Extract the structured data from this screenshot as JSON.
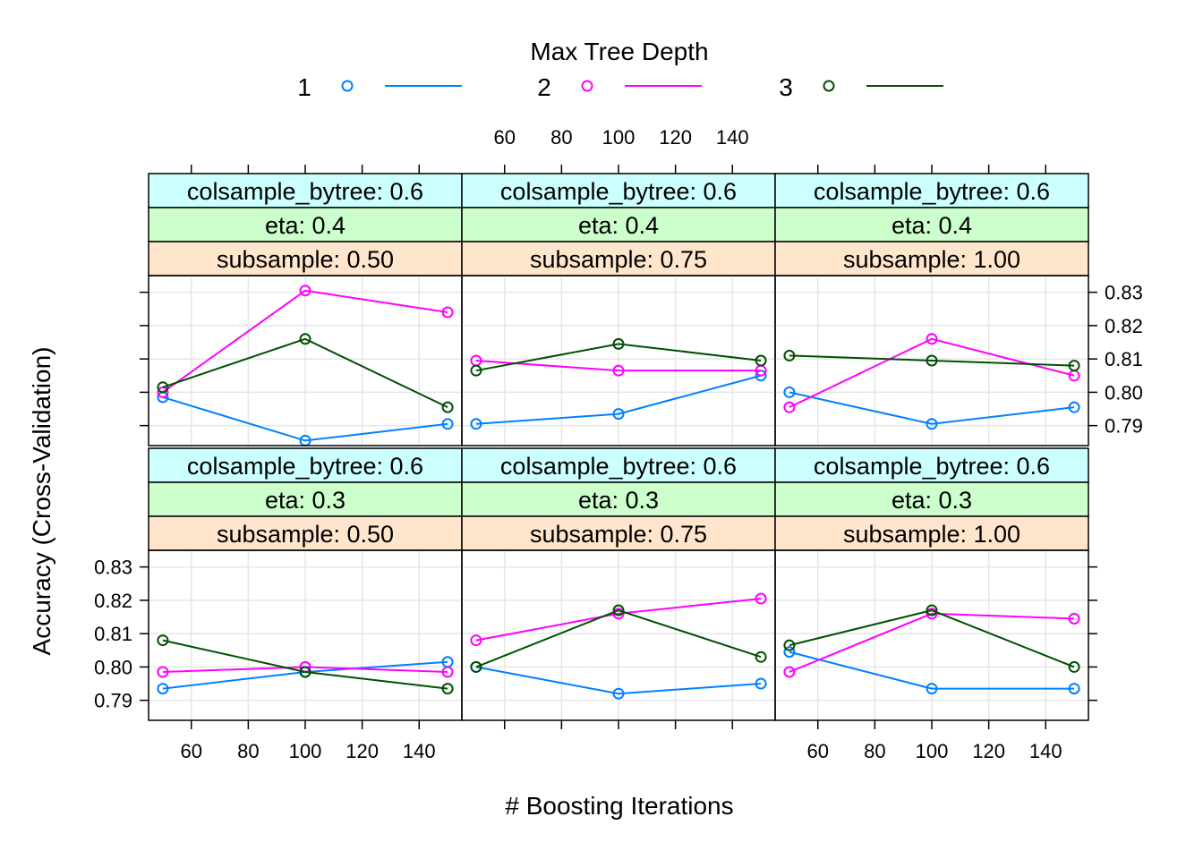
{
  "chart_data": {
    "type": "line",
    "legend": {
      "title": "Max Tree Depth",
      "placement": "top",
      "entries": [
        {
          "name": "1",
          "color": "#0080FF"
        },
        {
          "name": "2",
          "color": "#FF00FF"
        },
        {
          "name": "3",
          "color": "#005000"
        }
      ]
    },
    "xlabel": "# Boosting Iterations",
    "ylabel": "Accuracy (Cross-Validation)",
    "xlim": [
      45,
      155
    ],
    "ylim": [
      0.784,
      0.835
    ],
    "x_ticks": [
      60,
      80,
      100,
      120,
      140
    ],
    "x_tick_labels": [
      "60",
      "80",
      "100",
      "120",
      "140"
    ],
    "y_ticks": [
      0.79,
      0.8,
      0.81,
      0.82,
      0.83
    ],
    "y_tick_labels": [
      "0.79",
      "0.80",
      "0.81",
      "0.82",
      "0.83"
    ],
    "grid": true,
    "strip_colors": [
      "#CCFFFF",
      "#CCFFCC",
      "#FFE5CC"
    ],
    "x": [
      50,
      100,
      150
    ],
    "panels": [
      {
        "row": 0,
        "col": 0,
        "strips": [
          "colsample_bytree: 0.6",
          "eta: 0.4",
          "subsample: 0.50"
        ],
        "series": [
          {
            "name": "1",
            "values": [
              0.7985,
              0.7855,
              0.7905
            ]
          },
          {
            "name": "2",
            "values": [
              0.8,
              0.8305,
              0.824
            ]
          },
          {
            "name": "3",
            "values": [
              0.8015,
              0.816,
              0.7955
            ]
          }
        ]
      },
      {
        "row": 0,
        "col": 1,
        "strips": [
          "colsample_bytree: 0.6",
          "eta: 0.4",
          "subsample: 0.75"
        ],
        "series": [
          {
            "name": "1",
            "values": [
              0.7905,
              0.7935,
              0.805
            ]
          },
          {
            "name": "2",
            "values": [
              0.8095,
              0.8065,
              0.8065
            ]
          },
          {
            "name": "3",
            "values": [
              0.8065,
              0.8145,
              0.8095
            ]
          }
        ]
      },
      {
        "row": 0,
        "col": 2,
        "strips": [
          "colsample_bytree: 0.6",
          "eta: 0.4",
          "subsample: 1.00"
        ],
        "series": [
          {
            "name": "1",
            "values": [
              0.8,
              0.7905,
              0.7955
            ]
          },
          {
            "name": "2",
            "values": [
              0.7955,
              0.816,
              0.805
            ]
          },
          {
            "name": "3",
            "values": [
              0.811,
              0.8095,
              0.808
            ]
          }
        ]
      },
      {
        "row": 1,
        "col": 0,
        "strips": [
          "colsample_bytree: 0.6",
          "eta: 0.3",
          "subsample: 0.50"
        ],
        "series": [
          {
            "name": "1",
            "values": [
              0.7935,
              0.7985,
              0.8015
            ]
          },
          {
            "name": "2",
            "values": [
              0.7985,
              0.8,
              0.7985
            ]
          },
          {
            "name": "3",
            "values": [
              0.808,
              0.7985,
              0.7935
            ]
          }
        ]
      },
      {
        "row": 1,
        "col": 1,
        "strips": [
          "colsample_bytree: 0.6",
          "eta: 0.3",
          "subsample: 0.75"
        ],
        "series": [
          {
            "name": "1",
            "values": [
              0.8,
              0.792,
              0.795
            ]
          },
          {
            "name": "2",
            "values": [
              0.808,
              0.816,
              0.8205
            ]
          },
          {
            "name": "3",
            "values": [
              0.8,
              0.817,
              0.803
            ]
          }
        ]
      },
      {
        "row": 1,
        "col": 2,
        "strips": [
          "colsample_bytree: 0.6",
          "eta: 0.3",
          "subsample: 1.00"
        ],
        "series": [
          {
            "name": "1",
            "values": [
              0.8045,
              0.7935,
              0.7935
            ]
          },
          {
            "name": "2",
            "values": [
              0.7985,
              0.816,
              0.8145
            ]
          },
          {
            "name": "3",
            "values": [
              0.8065,
              0.817,
              0.8
            ]
          }
        ]
      }
    ]
  }
}
